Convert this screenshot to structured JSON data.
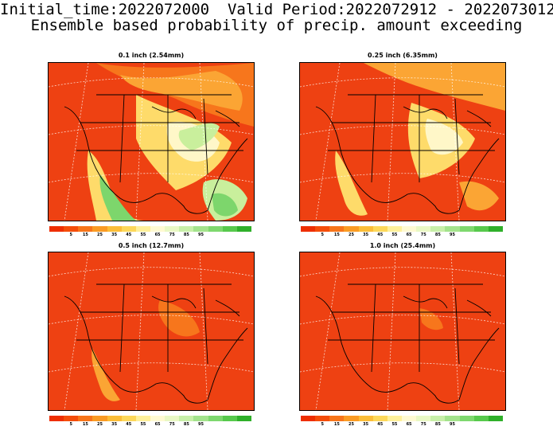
{
  "header": {
    "line1": "Initial_time:2022072000  Valid Period:2022072912 - 2022073012",
    "line2": "Ensemble based probability of precip. amount exceeding"
  },
  "panels": [
    {
      "title": "0.1 inch (2.54mm)",
      "variant": "p1"
    },
    {
      "title": "0.25 inch (6.35mm)",
      "variant": "p2"
    },
    {
      "title": "0.5 inch (12.7mm)",
      "variant": "p3"
    },
    {
      "title": "1.0 inch (25.4mm)",
      "variant": "p4"
    }
  ],
  "colorbar": {
    "colors": [
      "#ee2e00",
      "#f44d0a",
      "#f7751a",
      "#fa9b24",
      "#fbbd38",
      "#fdd85a",
      "#fef09a",
      "#fffad2",
      "#e9f8c4",
      "#c7efa8",
      "#a3e38c",
      "#7ed86e",
      "#57c94c",
      "#2fb02a"
    ],
    "ticks": [
      "5",
      "15",
      "25",
      "35",
      "45",
      "55",
      "65",
      "75",
      "85",
      "95"
    ]
  },
  "palette": {
    "background": "#ee4112",
    "orange": "#f7761c",
    "light_orange": "#fba534",
    "yellow": "#fedb6a",
    "pale": "#fff7c8",
    "light_green": "#c9ef9c",
    "green": "#7dd66c",
    "map_lines": "#000000",
    "grid_lines": "#ffffff"
  }
}
